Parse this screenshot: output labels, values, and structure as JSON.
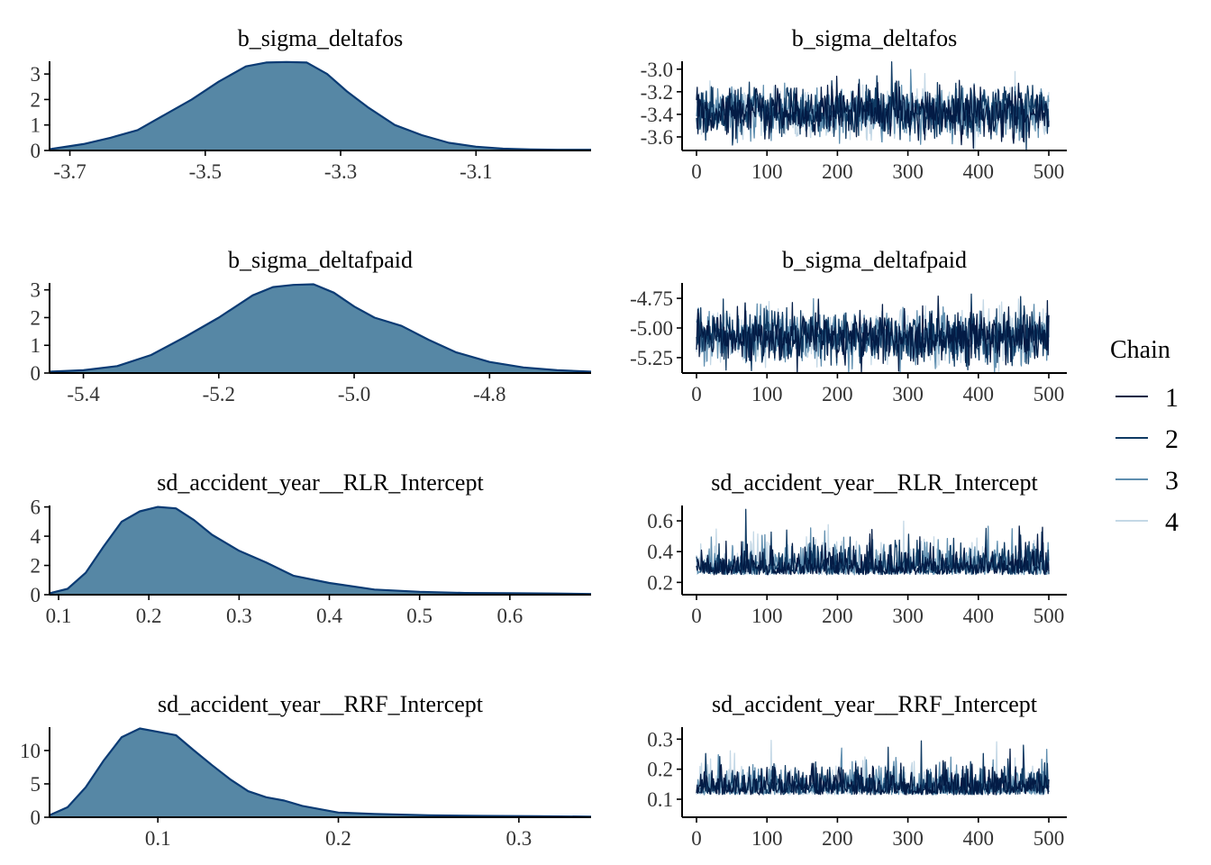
{
  "colors": {
    "density_fill": "#5687a5",
    "density_line": "#0b3b74",
    "axis": "#000000",
    "chain1": "#031b45",
    "chain2": "#0f3a63",
    "chain3": "#5f8eaf",
    "chain4": "#c4d8e6"
  },
  "legend": {
    "title": "Chain",
    "items": [
      {
        "label": "1",
        "color": "#031b45"
      },
      {
        "label": "2",
        "color": "#0f3a63"
      },
      {
        "label": "3",
        "color": "#5f8eaf"
      },
      {
        "label": "4",
        "color": "#c4d8e6"
      }
    ]
  },
  "chart_data": [
    {
      "type": "area",
      "title": "b_sigma_deltafos",
      "xlim": [
        -3.73,
        -2.93
      ],
      "ylim": [
        0,
        3.5
      ],
      "xticks": [
        "-3.7",
        "-3.5",
        "-3.3",
        "-3.1"
      ],
      "yticks": [
        "0",
        "1",
        "2",
        "3"
      ],
      "x": [
        -3.73,
        -3.68,
        -3.64,
        -3.6,
        -3.56,
        -3.52,
        -3.48,
        -3.44,
        -3.41,
        -3.38,
        -3.35,
        -3.32,
        -3.29,
        -3.26,
        -3.22,
        -3.18,
        -3.14,
        -3.1,
        -3.06,
        -3.02,
        -2.98,
        -2.93
      ],
      "y": [
        0.05,
        0.25,
        0.5,
        0.8,
        1.4,
        2.0,
        2.7,
        3.3,
        3.45,
        3.47,
        3.45,
        3.0,
        2.3,
        1.7,
        1.0,
        0.6,
        0.3,
        0.15,
        0.07,
        0.04,
        0.03,
        0.03
      ]
    },
    {
      "type": "line",
      "title": "b_sigma_deltafos",
      "xlim": [
        0,
        500
      ],
      "ylim": [
        -3.72,
        -2.93
      ],
      "xticks": [
        "0",
        "100",
        "200",
        "300",
        "400",
        "500"
      ],
      "yticks": [
        "-3.0",
        "-3.2",
        "-3.4",
        "-3.6"
      ],
      "center": -3.38,
      "spread": 0.11,
      "series": [
        {
          "name": "1",
          "values": []
        },
        {
          "name": "2",
          "values": []
        },
        {
          "name": "3",
          "values": []
        },
        {
          "name": "4",
          "values": []
        }
      ]
    },
    {
      "type": "area",
      "title": "b_sigma_deltafpaid",
      "xlim": [
        -5.45,
        -4.65
      ],
      "ylim": [
        0,
        3.25
      ],
      "xticks": [
        "-5.4",
        "-5.2",
        "-5.0",
        "-4.8"
      ],
      "yticks": [
        "0",
        "1",
        "2",
        "3"
      ],
      "x": [
        -5.45,
        -5.4,
        -5.35,
        -5.3,
        -5.25,
        -5.2,
        -5.15,
        -5.12,
        -5.09,
        -5.06,
        -5.03,
        -5.0,
        -4.97,
        -4.93,
        -4.89,
        -4.85,
        -4.8,
        -4.75,
        -4.7,
        -4.65
      ],
      "y": [
        0.05,
        0.1,
        0.25,
        0.65,
        1.3,
        2.0,
        2.8,
        3.1,
        3.18,
        3.2,
        2.9,
        2.4,
        2.0,
        1.7,
        1.2,
        0.75,
        0.4,
        0.2,
        0.1,
        0.05
      ]
    },
    {
      "type": "line",
      "title": "b_sigma_deltafpaid",
      "xlim": [
        0,
        500
      ],
      "ylim": [
        -5.38,
        -4.62
      ],
      "xticks": [
        "0",
        "100",
        "200",
        "300",
        "400",
        "500"
      ],
      "yticks": [
        "-4.75",
        "-5.00",
        "-5.25"
      ],
      "center": -5.07,
      "spread": 0.11,
      "series": [
        {
          "name": "1",
          "values": []
        },
        {
          "name": "2",
          "values": []
        },
        {
          "name": "3",
          "values": []
        },
        {
          "name": "4",
          "values": []
        }
      ]
    },
    {
      "type": "area",
      "title": "sd_accident_year__RLR_Intercept",
      "xlim": [
        0.09,
        0.69
      ],
      "ylim": [
        0,
        6.1
      ],
      "xticks": [
        "0.1",
        "0.2",
        "0.3",
        "0.4",
        "0.5",
        "0.6"
      ],
      "yticks": [
        "0",
        "2",
        "4",
        "6"
      ],
      "x": [
        0.09,
        0.11,
        0.13,
        0.15,
        0.17,
        0.19,
        0.21,
        0.23,
        0.25,
        0.27,
        0.3,
        0.33,
        0.36,
        0.4,
        0.45,
        0.5,
        0.55,
        0.6,
        0.65,
        0.69
      ],
      "y": [
        0.1,
        0.4,
        1.5,
        3.3,
        5.0,
        5.7,
        6.0,
        5.9,
        5.1,
        4.1,
        3.0,
        2.2,
        1.3,
        0.8,
        0.35,
        0.2,
        0.12,
        0.1,
        0.08,
        0.05
      ]
    },
    {
      "type": "line",
      "title": "sd_accident_year__RLR_Intercept",
      "xlim": [
        0,
        500
      ],
      "ylim": [
        0.12,
        0.7
      ],
      "xticks": [
        "0",
        "100",
        "200",
        "300",
        "400",
        "500"
      ],
      "yticks": [
        "0.6",
        "0.4",
        "0.2"
      ],
      "center": 0.25,
      "spread": 0.07,
      "series": [
        {
          "name": "1",
          "values": []
        },
        {
          "name": "2",
          "values": []
        },
        {
          "name": "3",
          "values": []
        },
        {
          "name": "4",
          "values": []
        }
      ]
    },
    {
      "type": "area",
      "title": "sd_accident_year__RRF_Intercept",
      "xlim": [
        0.04,
        0.34
      ],
      "ylim": [
        0,
        13.5
      ],
      "xticks": [
        "0.1",
        "0.2",
        "0.3"
      ],
      "yticks": [
        "0",
        "5",
        "10"
      ],
      "x": [
        0.04,
        0.05,
        0.06,
        0.07,
        0.08,
        0.09,
        0.1,
        0.11,
        0.12,
        0.13,
        0.14,
        0.15,
        0.16,
        0.17,
        0.18,
        0.2,
        0.22,
        0.25,
        0.28,
        0.31,
        0.34
      ],
      "y": [
        0.3,
        1.5,
        4.5,
        8.5,
        12.0,
        13.3,
        12.8,
        12.3,
        10.0,
        7.8,
        5.7,
        3.9,
        3.0,
        2.5,
        1.7,
        0.7,
        0.5,
        0.3,
        0.2,
        0.15,
        0.1
      ]
    },
    {
      "type": "line",
      "title": "sd_accident_year__RRF_Intercept",
      "xlim": [
        0,
        500
      ],
      "ylim": [
        0.04,
        0.34
      ],
      "xticks": [
        "0",
        "100",
        "200",
        "300",
        "400",
        "500"
      ],
      "yticks": [
        "0.3",
        "0.2",
        "0.1"
      ],
      "center": 0.115,
      "spread": 0.035,
      "series": [
        {
          "name": "1",
          "values": []
        },
        {
          "name": "2",
          "values": []
        },
        {
          "name": "3",
          "values": []
        },
        {
          "name": "4",
          "values": []
        }
      ]
    }
  ]
}
